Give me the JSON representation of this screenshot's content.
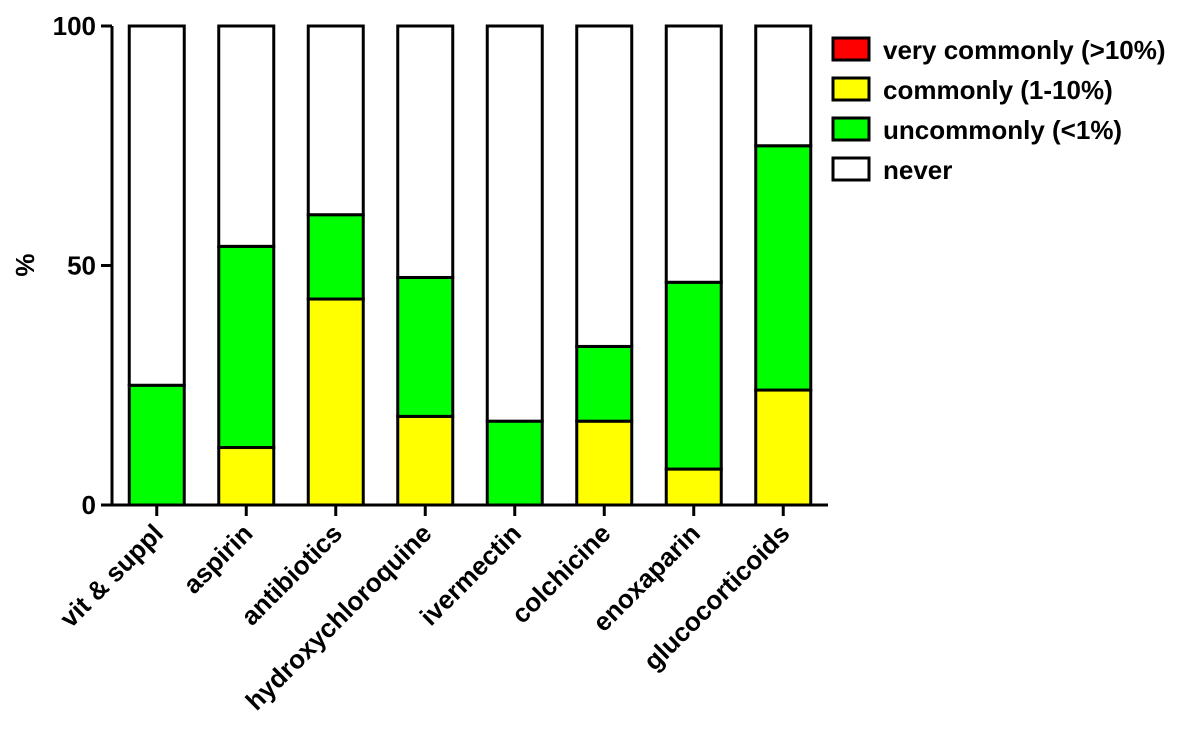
{
  "chart_data": {
    "type": "bar",
    "stacked": true,
    "title": "",
    "xlabel": "",
    "ylabel": "%",
    "ylim": [
      0,
      100
    ],
    "yticks": [
      "0",
      "50",
      "100"
    ],
    "grid": false,
    "legend_position": "top-right",
    "categories": [
      "vit & suppl",
      "aspirin",
      "antibiotics",
      "hydroxychloroquine",
      "ivermectin",
      "colchicine",
      "enoxaparin",
      "glucocorticoids"
    ],
    "series": [
      {
        "name": "very commonly (>10%)",
        "color": "#ff0000",
        "values": [
          0,
          0,
          0,
          0,
          0,
          0,
          0,
          0
        ]
      },
      {
        "name": "commonly (1-10%)",
        "color": "#ffff00",
        "values": [
          0,
          12,
          43,
          18.5,
          0,
          17.5,
          7.5,
          24
        ]
      },
      {
        "name": "uncommonly (<1%)",
        "color": "#00ff00",
        "values": [
          25,
          42,
          17.6,
          29,
          17.5,
          15.6,
          39,
          51
        ]
      },
      {
        "name": "never",
        "color": "#ffffff",
        "values": [
          75,
          46,
          39.4,
          52.5,
          82.5,
          66.9,
          53.5,
          25
        ]
      }
    ],
    "legend_order": [
      "very commonly (>10%)",
      "commonly (1-10%)",
      "uncommonly (<1%)",
      "never"
    ]
  }
}
